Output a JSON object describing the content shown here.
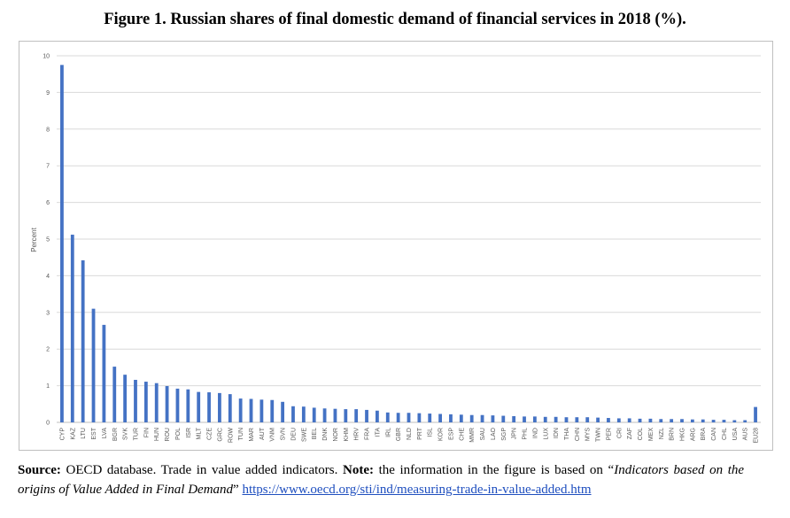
{
  "figure": {
    "title": "Figure 1. Russian shares of final domestic demand of financial services in 2018 (%)."
  },
  "caption": {
    "source_label": "Source:",
    "source_text": " OECD database. Trade in value added indicators. ",
    "note_label": "Note:",
    "note_text": " the information in the figure is based on ",
    "quote_open": "“",
    "indicator_title": "Indicators based on the origins of Value Added in Final Demand",
    "quote_close": "” ",
    "link": "https://www.oecd.org/sti/ind/measuring-trade-in-value-added.htm"
  },
  "chart_data": {
    "type": "bar",
    "title": "Figure 1. Russian shares of final domestic demand of financial services in 2018 (%).",
    "xlabel": "",
    "ylabel": "Percent",
    "ylim": [
      0,
      10
    ],
    "yticks": [
      0,
      1,
      2,
      3,
      4,
      5,
      6,
      7,
      8,
      9,
      10
    ],
    "grid": true,
    "legend": "none",
    "bar_color": "#4472c4",
    "categories": [
      "CYP",
      "KAZ",
      "LTU",
      "EST",
      "LVA",
      "BGR",
      "SVK",
      "TUR",
      "FIN",
      "HUN",
      "ROU",
      "POL",
      "ISR",
      "MLT",
      "CZE",
      "GRC",
      "ROW",
      "TUN",
      "MAR",
      "AUT",
      "VNM",
      "SVN",
      "DEU",
      "SWE",
      "BEL",
      "DNK",
      "NOR",
      "KHM",
      "HRV",
      "FRA",
      "ITA",
      "IRL",
      "GBR",
      "NLD",
      "PRT",
      "ISL",
      "KOR",
      "ESP",
      "CHE",
      "MMR",
      "SAU",
      "LAO",
      "SGP",
      "JPN",
      "PHL",
      "IND",
      "LUX",
      "IDN",
      "THA",
      "CHN",
      "MYS",
      "TWN",
      "PER",
      "CRI",
      "ZAF",
      "COL",
      "MEX",
      "NZL",
      "BRN",
      "HKG",
      "ARG",
      "BRA",
      "CAN",
      "CHL",
      "USA",
      "AUS",
      "EU28"
    ],
    "values": [
      9.75,
      5.12,
      4.42,
      3.1,
      2.66,
      1.52,
      1.3,
      1.16,
      1.11,
      1.07,
      0.99,
      0.92,
      0.9,
      0.83,
      0.82,
      0.8,
      0.77,
      0.65,
      0.64,
      0.62,
      0.61,
      0.56,
      0.44,
      0.43,
      0.4,
      0.38,
      0.37,
      0.36,
      0.36,
      0.34,
      0.32,
      0.27,
      0.26,
      0.26,
      0.25,
      0.24,
      0.23,
      0.22,
      0.21,
      0.2,
      0.2,
      0.19,
      0.18,
      0.17,
      0.16,
      0.16,
      0.15,
      0.15,
      0.14,
      0.14,
      0.14,
      0.13,
      0.12,
      0.11,
      0.11,
      0.1,
      0.1,
      0.09,
      0.09,
      0.09,
      0.08,
      0.08,
      0.07,
      0.07,
      0.06,
      0.06,
      0.42
    ]
  }
}
